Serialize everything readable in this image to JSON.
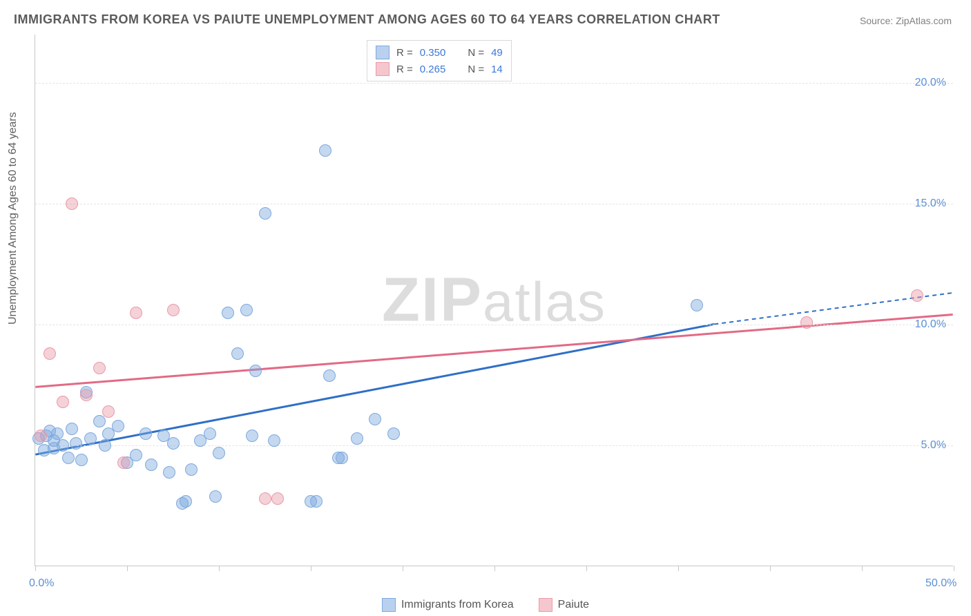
{
  "title": "IMMIGRANTS FROM KOREA VS PAIUTE UNEMPLOYMENT AMONG AGES 60 TO 64 YEARS CORRELATION CHART",
  "source": "Source: ZipAtlas.com",
  "ylabel": "Unemployment Among Ages 60 to 64 years",
  "watermark_a": "ZIP",
  "watermark_b": "atlas",
  "chart": {
    "type": "scatter",
    "xlim": [
      0,
      50
    ],
    "ylim": [
      0,
      22
    ],
    "x_ticks": [
      0,
      5,
      10,
      15,
      20,
      25,
      30,
      35,
      40,
      45,
      50
    ],
    "y_gridlines": [
      5,
      10,
      15,
      20
    ],
    "y_tick_labels": [
      {
        "v": 5,
        "text": "5.0%"
      },
      {
        "v": 10,
        "text": "10.0%"
      },
      {
        "v": 15,
        "text": "15.0%"
      },
      {
        "v": 20,
        "text": "20.0%"
      }
    ],
    "x_tick_labels": [
      {
        "v": 0,
        "text": "0.0%"
      },
      {
        "v": 50,
        "text": "50.0%"
      }
    ],
    "background_color": "#ffffff",
    "grid_color": "#e4e4e4",
    "axis_color": "#c8c8c8",
    "marker_radius": 9,
    "marker_opacity": 0.55,
    "stat_legend": [
      {
        "swatch_fill": "#b9d1ef",
        "swatch_border": "#7da8dd",
        "r_label": "R =",
        "r_val": "0.350",
        "n_label": "N =",
        "n_val": "49"
      },
      {
        "swatch_fill": "#f6c6ce",
        "swatch_border": "#e99aa8",
        "r_label": "R =",
        "r_val": "0.265",
        "n_label": "N =",
        "n_val": "14"
      }
    ],
    "bottom_legend": [
      {
        "swatch_fill": "#b9d1ef",
        "swatch_border": "#7da8dd",
        "label": "Immigrants from Korea"
      },
      {
        "swatch_fill": "#f6c6ce",
        "swatch_border": "#e99aa8",
        "label": "Paiute"
      }
    ],
    "series": [
      {
        "name": "korea",
        "color_fill": "rgba(125,168,221,0.45)",
        "color_stroke": "#7da8dd",
        "trend": {
          "x1": 0,
          "y1": 4.6,
          "x2_solid": 37,
          "y2_solid": 10.0,
          "x2_dash": 50,
          "y2_dash": 11.3,
          "stroke": "#2f6fc7",
          "width": 3
        },
        "points": [
          [
            0.2,
            5.3
          ],
          [
            0.5,
            4.8
          ],
          [
            0.6,
            5.4
          ],
          [
            0.8,
            5.6
          ],
          [
            1.0,
            4.9
          ],
          [
            1.0,
            5.2
          ],
          [
            1.2,
            5.5
          ],
          [
            1.5,
            5.0
          ],
          [
            1.8,
            4.5
          ],
          [
            2.0,
            5.7
          ],
          [
            2.2,
            5.1
          ],
          [
            2.5,
            4.4
          ],
          [
            2.8,
            7.2
          ],
          [
            3.0,
            5.3
          ],
          [
            3.5,
            6.0
          ],
          [
            3.8,
            5.0
          ],
          [
            4.0,
            5.5
          ],
          [
            4.5,
            5.8
          ],
          [
            5.0,
            4.3
          ],
          [
            5.5,
            4.6
          ],
          [
            6.0,
            5.5
          ],
          [
            6.3,
            4.2
          ],
          [
            7.0,
            5.4
          ],
          [
            7.3,
            3.9
          ],
          [
            7.5,
            5.1
          ],
          [
            8.0,
            2.6
          ],
          [
            8.2,
            2.7
          ],
          [
            8.5,
            4.0
          ],
          [
            9.0,
            5.2
          ],
          [
            9.5,
            5.5
          ],
          [
            9.8,
            2.9
          ],
          [
            10.0,
            4.7
          ],
          [
            10.5,
            10.5
          ],
          [
            11.0,
            8.8
          ],
          [
            11.5,
            10.6
          ],
          [
            11.8,
            5.4
          ],
          [
            12.0,
            8.1
          ],
          [
            12.5,
            14.6
          ],
          [
            13.0,
            5.2
          ],
          [
            15.0,
            2.7
          ],
          [
            15.3,
            2.7
          ],
          [
            15.8,
            17.2
          ],
          [
            16.0,
            7.9
          ],
          [
            16.5,
            4.5
          ],
          [
            16.7,
            4.5
          ],
          [
            17.5,
            5.3
          ],
          [
            18.5,
            6.1
          ],
          [
            19.5,
            5.5
          ],
          [
            36.0,
            10.8
          ]
        ]
      },
      {
        "name": "paiute",
        "color_fill": "rgba(233,154,168,0.45)",
        "color_stroke": "#e99aa8",
        "trend": {
          "x1": 0,
          "y1": 7.4,
          "x2_solid": 50,
          "y2_solid": 10.4,
          "x2_dash": 50,
          "y2_dash": 10.4,
          "stroke": "#e26a85",
          "width": 3
        },
        "points": [
          [
            0.3,
            5.4
          ],
          [
            0.8,
            8.8
          ],
          [
            1.5,
            6.8
          ],
          [
            2.0,
            15.0
          ],
          [
            2.8,
            7.1
          ],
          [
            3.5,
            8.2
          ],
          [
            4.0,
            6.4
          ],
          [
            4.8,
            4.3
          ],
          [
            5.5,
            10.5
          ],
          [
            7.5,
            10.6
          ],
          [
            12.5,
            2.8
          ],
          [
            13.2,
            2.8
          ],
          [
            42.0,
            10.1
          ],
          [
            48.0,
            11.2
          ]
        ]
      }
    ]
  }
}
